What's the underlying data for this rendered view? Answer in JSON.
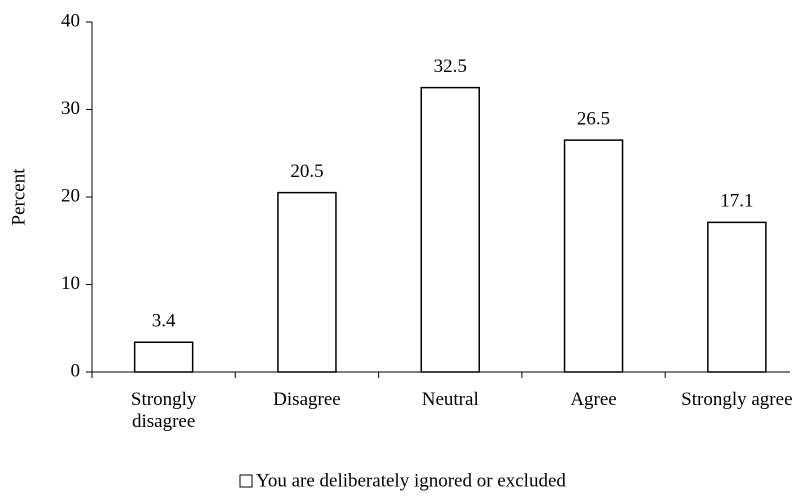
{
  "chart_data": {
    "type": "bar",
    "y_label": "Percent",
    "categories": [
      "Strongly disagree",
      "Disagree",
      "Neutral",
      "Agree",
      "Strongly agree"
    ],
    "series": [
      {
        "name": "You are deliberately ignored or excluded",
        "color": "#ffffff",
        "values": [
          3.4,
          20.5,
          32.5,
          26.5,
          17.1
        ]
      }
    ],
    "ylim": [
      0,
      40
    ],
    "yticks": [
      0,
      10,
      20,
      30,
      40
    ],
    "grid": false,
    "legend": "bottom"
  }
}
